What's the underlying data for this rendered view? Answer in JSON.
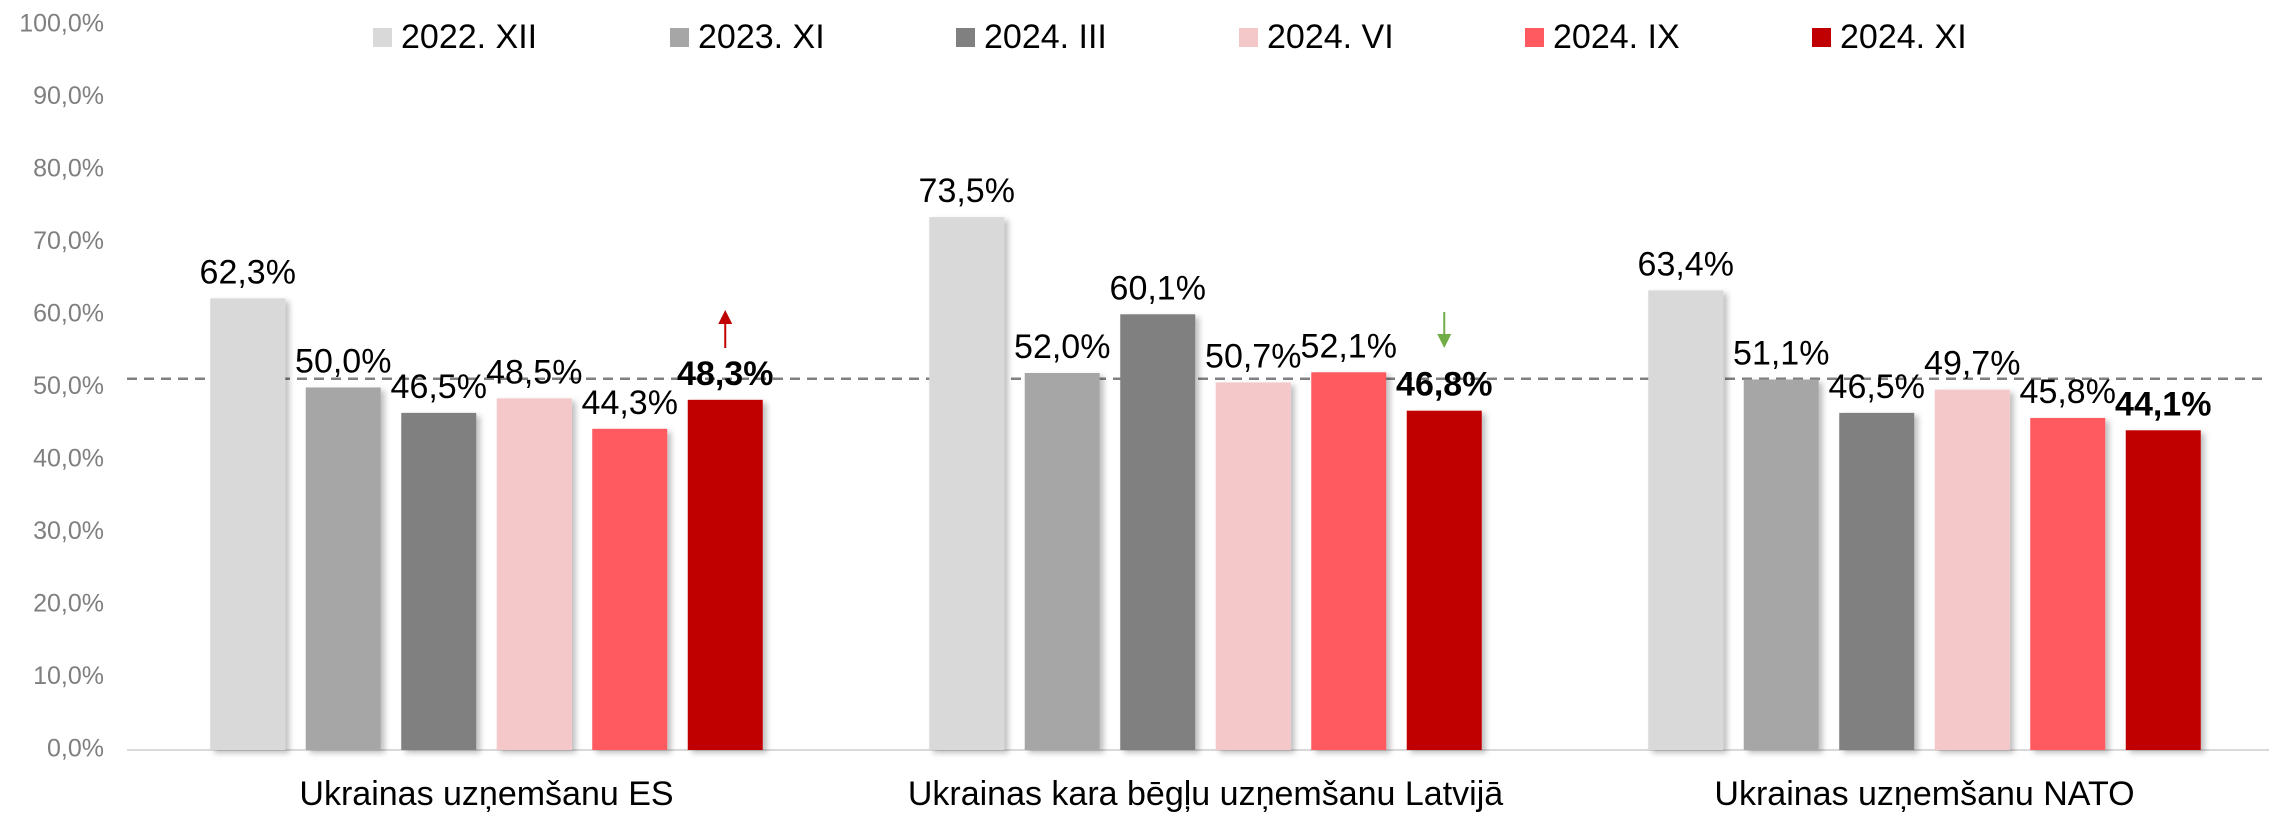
{
  "chart_data": {
    "type": "bar",
    "categories": [
      "Ukrainas uzņemšanu ES",
      "Ukrainas kara bēgļu uzņemšanu Latvijā",
      "Ukrainas uzņemšanu NATO"
    ],
    "series": [
      {
        "name": "2022. XII",
        "color": "#d9d9d9",
        "values": [
          62.3,
          73.5,
          63.4
        ],
        "value_labels": [
          "62,3%",
          "73,5%",
          "63,4%"
        ]
      },
      {
        "name": "2023. XI",
        "color": "#a6a6a6",
        "values": [
          50.0,
          52.0,
          51.1
        ],
        "value_labels": [
          "50,0%",
          "52,0%",
          "51,1%"
        ]
      },
      {
        "name": "2024. III",
        "color": "#808080",
        "values": [
          46.5,
          60.1,
          46.5
        ],
        "value_labels": [
          "46,5%",
          "60,1%",
          "46,5%"
        ]
      },
      {
        "name": "2024. VI",
        "color": "#f4c7c9",
        "values": [
          48.5,
          50.7,
          49.7
        ],
        "value_labels": [
          "48,5%",
          "50,7%",
          "49,7%"
        ]
      },
      {
        "name": "2024. IX",
        "color": "#ff5a5f",
        "values": [
          44.3,
          52.1,
          45.8
        ],
        "value_labels": [
          "44,3%",
          "52,1%",
          "45,8%"
        ]
      },
      {
        "name": "2024. XI",
        "color": "#c00000",
        "values": [
          48.3,
          46.8,
          44.1
        ],
        "value_labels": [
          "48,3%",
          "46,8%",
          "44,1%"
        ]
      }
    ],
    "ylim": [
      0,
      100
    ],
    "yticks": [
      {
        "value": 0,
        "label": "0,0%"
      },
      {
        "value": 10,
        "label": "10,0%"
      },
      {
        "value": 20,
        "label": "20,0%"
      },
      {
        "value": 30,
        "label": "30,0%"
      },
      {
        "value": 40,
        "label": "40,0%"
      },
      {
        "value": 50,
        "label": "50,0%"
      },
      {
        "value": 60,
        "label": "60,0%"
      },
      {
        "value": 70,
        "label": "70,0%"
      },
      {
        "value": 80,
        "label": "80,0%"
      },
      {
        "value": 90,
        "label": "90,0%"
      },
      {
        "value": 100,
        "label": "100,0%"
      }
    ],
    "reference_line": 51.2,
    "legend": "top"
  }
}
